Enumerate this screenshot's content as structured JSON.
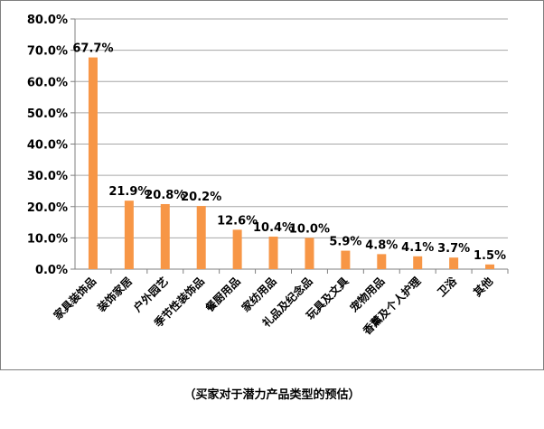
{
  "caption": "（买家对于潜力产品类型的预估）",
  "chart_data": {
    "type": "bar",
    "categories": [
      "家具装饰品",
      "装饰家居",
      "户外园艺",
      "季节性装饰品",
      "餐厨用品",
      "家纺用品",
      "礼品及纪念品",
      "玩具及文具",
      "宠物用品",
      "香薰及个人护理",
      "卫浴",
      "其他"
    ],
    "values": [
      67.7,
      21.9,
      20.8,
      20.2,
      12.6,
      10.4,
      10.0,
      5.9,
      4.8,
      4.1,
      3.7,
      1.5
    ],
    "data_labels": [
      "67.7%",
      "21.9%",
      "20.8%",
      "20.2%",
      "12.6%",
      "10.4%",
      "10.0%",
      "5.9%",
      "4.8%",
      "4.1%",
      "3.7%",
      "1.5%"
    ],
    "ylim": [
      0,
      80
    ],
    "yticks": [
      0,
      10,
      20,
      30,
      40,
      50,
      60,
      70,
      80
    ],
    "ytick_labels": [
      "0.0%",
      "10.0%",
      "20.0%",
      "30.0%",
      "40.0%",
      "50.0%",
      "60.0%",
      "70.0%",
      "80.0%"
    ],
    "grid": true,
    "legend": "none",
    "title": "",
    "xlabel": "",
    "ylabel": "",
    "bar_color": "#f79646",
    "grid_color": "#a6a6a6"
  }
}
